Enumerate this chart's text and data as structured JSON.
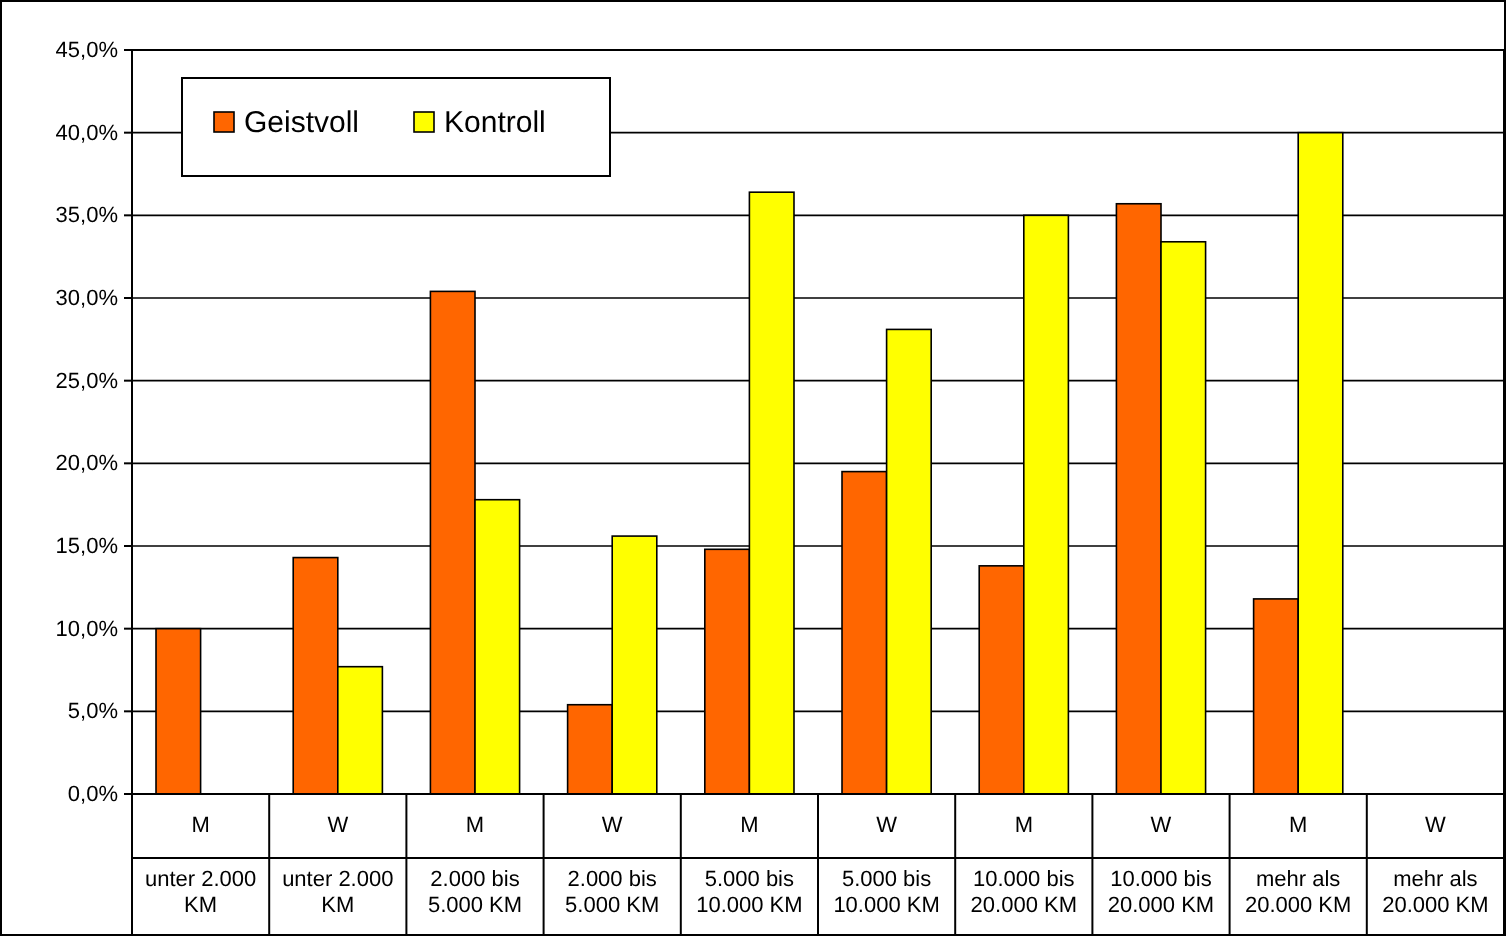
{
  "chart_data": {
    "type": "bar",
    "categories": [
      "M\nunter 2.000\nKM",
      "W\nunter 2.000\nKM",
      "M\n2.000 bis\n5.000 KM",
      "W\n2.000 bis\n5.000 KM",
      "M\n5.000 bis\n10.000 KM",
      "W\n5.000 bis\n10.000 KM",
      "M\n10.000 bis\n20.000 KM",
      "W\n10.000 bis\n20.000 KM",
      "M\nmehr als\n20.000 KM",
      "W\nmehr als\n20.000 KM"
    ],
    "series": [
      {
        "name": "Geistvoll",
        "color": "#ff6600",
        "values": [
          10.0,
          14.3,
          30.4,
          5.4,
          14.8,
          19.5,
          13.8,
          35.7,
          11.8,
          null
        ]
      },
      {
        "name": "Kontroll",
        "color": "#ffff00",
        "values": [
          null,
          7.7,
          17.8,
          15.6,
          36.4,
          28.1,
          35.0,
          33.4,
          40.0,
          null
        ]
      }
    ],
    "ylim": [
      0,
      45
    ],
    "yticks": [
      {
        "value": 0,
        "label": "0,0%"
      },
      {
        "value": 5,
        "label": "5,0%"
      },
      {
        "value": 10,
        "label": "10,0%"
      },
      {
        "value": 15,
        "label": "15,0%"
      },
      {
        "value": 20,
        "label": "20,0%"
      },
      {
        "value": 25,
        "label": "25,0%"
      },
      {
        "value": 30,
        "label": "30,0%"
      },
      {
        "value": 35,
        "label": "35,0%"
      },
      {
        "value": 40,
        "label": "40,0%"
      },
      {
        "value": 45,
        "label": "45,0%"
      }
    ],
    "grid": "y",
    "legend": "top left"
  }
}
